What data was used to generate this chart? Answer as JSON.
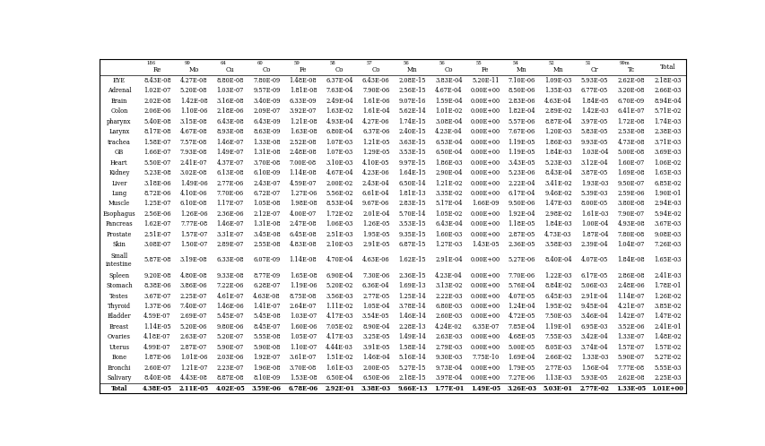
{
  "col_superscripts": [
    "",
    "186",
    "99",
    "64",
    "60",
    "59",
    "58",
    "57",
    "56",
    "56",
    "55",
    "54",
    "52",
    "51",
    "99m",
    ""
  ],
  "col_bases": [
    "",
    "Re",
    "Mo",
    "Cu",
    "Co",
    "Fe",
    "Co",
    "Co",
    "Mn",
    "Co",
    "Fe",
    "Mn",
    "Mn",
    "Cr",
    "Tc",
    "Total"
  ],
  "rows": [
    [
      "EYE",
      "8.43E-08",
      "4.27E-08",
      "8.80E-08",
      "7.80E-09",
      "1.48E-08",
      "6.37E-04",
      "6.43E-06",
      "2.08E-15",
      "3.83E-04",
      "5.20E-11",
      "7.10E-06",
      "1.09E-03",
      "5.93E-05",
      "2.62E-08",
      "2.18E-03"
    ],
    [
      "Adrenal",
      "1.02E-07",
      "5.20E-08",
      "1.03E-07",
      "9.57E-09",
      "1.81E-08",
      "7.63E-04",
      "7.90E-06",
      "2.56E-15",
      "4.67E-04",
      "0.00E+00",
      "8.50E-06",
      "1.35E-03",
      "6.77E-05",
      "3.20E-08",
      "2.66E-03"
    ],
    [
      "Brain",
      "2.02E-08",
      "1.42E-08",
      "3.16E-08",
      "3.40E-09",
      "6.33E-09",
      "2.49E-04",
      "1.61E-06",
      "9.07E-16",
      "1.59E-04",
      "0.00E+00",
      "2.83E-06",
      "4.63E-04",
      "1.84E-05",
      "6.70E-09",
      "8.94E-04"
    ],
    [
      "Colon",
      "2.06E-06",
      "1.10E-06",
      "2.18E-06",
      "2.09E-07",
      "3.92E-07",
      "1.63E-02",
      "1.61E-04",
      "5.62E-14",
      "1.01E-02",
      "0.00E+00",
      "1.82E-04",
      "2.89E-02",
      "1.42E-03",
      "6.41E-07",
      "5.71E-02"
    ],
    [
      "pharynx",
      "5.40E-08",
      "3.15E-08",
      "6.43E-08",
      "6.43E-09",
      "1.21E-08",
      "4.93E-04",
      "4.27E-06",
      "1.74E-15",
      "3.08E-04",
      "0.00E+00",
      "5.57E-06",
      "8.87E-04",
      "3.97E-05",
      "1.72E-08",
      "1.74E-03"
    ],
    [
      "Larynx",
      "8.17E-08",
      "4.67E-08",
      "8.93E-08",
      "8.63E-09",
      "1.63E-08",
      "6.80E-04",
      "6.37E-06",
      "2.40E-15",
      "4.23E-04",
      "0.00E+00",
      "7.67E-06",
      "1.20E-03",
      "5.83E-05",
      "2.53E-08",
      "2.38E-03"
    ],
    [
      "trachea",
      "1.58E-07",
      "7.57E-08",
      "1.46E-07",
      "1.33E-08",
      "2.52E-08",
      "1.07E-03",
      "1.21E-05",
      "3.63E-15",
      "6.53E-04",
      "0.00E+00",
      "1.19E-05",
      "1.86E-03",
      "9.93E-05",
      "4.73E-08",
      "3.71E-03"
    ],
    [
      "GB",
      "1.66E-07",
      "7.93E-08",
      "1.49E-07",
      "1.31E-08",
      "2.48E-08",
      "1.07E-03",
      "1.29E-05",
      "3.53E-15",
      "6.50E-04",
      "0.00E+00",
      "1.19E-05",
      "1.84E-03",
      "1.03E-04",
      "5.00E-08",
      "3.69E-03"
    ],
    [
      "Heart",
      "5.50E-07",
      "2.41E-07",
      "4.37E-07",
      "3.70E-08",
      "7.00E-08",
      "3.10E-03",
      "4.10E-05",
      "9.97E-15",
      "1.86E-03",
      "0.00E+00",
      "3.43E-05",
      "5.23E-03",
      "3.12E-04",
      "1.60E-07",
      "1.06E-02"
    ],
    [
      "Kidney",
      "5.23E-08",
      "3.02E-08",
      "6.13E-08",
      "6.10E-09",
      "1.14E-08",
      "4.67E-04",
      "4.23E-06",
      "1.64E-15",
      "2.90E-04",
      "0.00E+00",
      "5.23E-06",
      "8.43E-04",
      "3.87E-05",
      "1.69E-08",
      "1.65E-03"
    ],
    [
      "Liver",
      "3.18E-06",
      "1.49E-06",
      "2.77E-06",
      "2.43E-07",
      "4.59E-07",
      "2.00E-02",
      "2.43E-04",
      "6.50E-14",
      "1.21E-02",
      "0.00E+00",
      "2.22E-04",
      "3.41E-02",
      "1.93E-03",
      "9.50E-07",
      "6.85E-02"
    ],
    [
      "Lung",
      "8.72E-06",
      "4.10E-06",
      "7.70E-06",
      "6.72E-07",
      "1.27E-06",
      "5.56E-02",
      "6.61E-04",
      "1.81E-13",
      "3.35E-02",
      "0.00E+00",
      "6.17E-04",
      "9.46E-02",
      "5.39E-03",
      "2.59E-06",
      "1.90E-01"
    ],
    [
      "Muscle",
      "1.25E-07",
      "6.10E-08",
      "1.17E-07",
      "1.05E-08",
      "1.98E-08",
      "8.53E-04",
      "9.67E-06",
      "2.83E-15",
      "5.17E-04",
      "1.66E-09",
      "9.50E-06",
      "1.47E-03",
      "8.00E-05",
      "3.80E-08",
      "2.94E-03"
    ],
    [
      "Esophagus",
      "2.56E-06",
      "1.26E-06",
      "2.36E-06",
      "2.12E-07",
      "4.00E-07",
      "1.72E-02",
      "2.01E-04",
      "5.70E-14",
      "1.05E-02",
      "0.00E+00",
      "1.92E-04",
      "2.98E-02",
      "1.61E-03",
      "7.90E-07",
      "5.94E-02"
    ],
    [
      "Pancreas",
      "1.62E-07",
      "7.77E-08",
      "1.46E-07",
      "1.31E-08",
      "2.47E-08",
      "1.06E-03",
      "1.26E-05",
      "3.53E-15",
      "6.43E-04",
      "0.00E+00",
      "1.18E-05",
      "1.84E-03",
      "1.00E-04",
      "4.93E-08",
      "3.67E-03"
    ],
    [
      "Prostate",
      "2.51E-07",
      "1.57E-07",
      "3.31E-07",
      "3.45E-08",
      "6.45E-08",
      "2.51E-03",
      "1.95E-05",
      "9.35E-15",
      "1.60E-03",
      "0.00E+00",
      "2.87E-05",
      "4.73E-03",
      "1.87E-04",
      "7.80E-08",
      "9.08E-03"
    ],
    [
      "Skin",
      "3.08E-07",
      "1.50E-07",
      "2.89E-07",
      "2.55E-08",
      "4.83E-08",
      "2.10E-03",
      "2.91E-05",
      "6.87E-15",
      "1.27E-03",
      "1.43E-05",
      "2.36E-05",
      "3.58E-03",
      "2.39E-04",
      "1.04E-07",
      "7.26E-03"
    ],
    [
      "Small\nintestine",
      "5.87E-08",
      "3.19E-08",
      "6.33E-08",
      "6.07E-09",
      "1.14E-08",
      "4.70E-04",
      "4.63E-06",
      "1.62E-15",
      "2.91E-04",
      "0.00E+00",
      "5.27E-06",
      "8.40E-04",
      "4.07E-05",
      "1.84E-08",
      "1.65E-03"
    ],
    [
      "Spleen",
      "9.20E-08",
      "4.80E-08",
      "9.33E-08",
      "8.77E-09",
      "1.65E-08",
      "6.90E-04",
      "7.30E-06",
      "2.36E-15",
      "4.23E-04",
      "0.00E+00",
      "7.70E-06",
      "1.22E-03",
      "6.17E-05",
      "2.86E-08",
      "2.41E-03"
    ],
    [
      "Stomach",
      "8.38E-06",
      "3.86E-06",
      "7.22E-06",
      "6.28E-07",
      "1.19E-06",
      "5.20E-02",
      "6.36E-04",
      "1.69E-13",
      "3.13E-02",
      "0.00E+00",
      "5.76E-04",
      "8.84E-02",
      "5.06E-03",
      "2.48E-06",
      "1.78E-01"
    ],
    [
      "Testes",
      "3.67E-07",
      "2.25E-07",
      "4.61E-07",
      "4.63E-08",
      "8.75E-08",
      "3.56E-03",
      "2.77E-05",
      "1.25E-14",
      "2.22E-03",
      "0.00E+00",
      "4.07E-05",
      "6.45E-03",
      "2.91E-04",
      "1.14E-07",
      "1.26E-02"
    ],
    [
      "Thyroid",
      "1.37E-06",
      "7.40E-07",
      "1.46E-06",
      "1.41E-07",
      "2.64E-07",
      "1.11E-02",
      "1.05E-04",
      "3.78E-14",
      "6.80E-03",
      "0.00E+00",
      "1.24E-04",
      "1.95E-02",
      "9.45E-04",
      "4.21E-07",
      "3.85E-02"
    ],
    [
      "Bladder",
      "4.59E-07",
      "2.69E-07",
      "5.45E-07",
      "5.45E-08",
      "1.03E-07",
      "4.17E-03",
      "3.54E-05",
      "1.46E-14",
      "2.60E-03",
      "0.00E+00",
      "4.72E-05",
      "7.50E-03",
      "3.46E-04",
      "1.42E-07",
      "1.47E-02"
    ],
    [
      "Breast",
      "1.14E-05",
      "5.20E-06",
      "9.80E-06",
      "8.45E-07",
      "1.60E-06",
      "7.05E-02",
      "8.90E-04",
      "2.28E-13",
      "4.24E-02",
      "6.35E-07",
      "7.85E-04",
      "1.19E-01",
      "6.95E-03",
      "3.52E-06",
      "2.41E-01"
    ],
    [
      "Ovaries",
      "4.18E-07",
      "2.63E-07",
      "5.20E-07",
      "5.55E-08",
      "1.05E-07",
      "4.17E-03",
      "3.25E-05",
      "1.49E-14",
      "2.63E-03",
      "0.00E+00",
      "4.68E-05",
      "7.55E-03",
      "3.42E-04",
      "1.33E-07",
      "1.48E-02"
    ],
    [
      "Uterus",
      "4.99E-07",
      "2.87E-07",
      "5.90E-07",
      "5.90E-08",
      "1.10E-07",
      "4.44E-03",
      "3.91E-05",
      "1.58E-14",
      "2.79E-03",
      "0.00E+00",
      "5.00E-05",
      "8.05E-03",
      "3.74E-04",
      "1.57E-07",
      "1.57E-02"
    ],
    [
      "Bone",
      "1.87E-06",
      "1.01E-06",
      "2.03E-06",
      "1.92E-07",
      "3.61E-07",
      "1.51E-02",
      "1.46E-04",
      "5.16E-14",
      "9.30E-03",
      "7.75E-10",
      "1.69E-04",
      "2.66E-02",
      "1.33E-03",
      "5.90E-07",
      "5.27E-02"
    ],
    [
      "Bronchi",
      "2.60E-07",
      "1.21E-07",
      "2.23E-07",
      "1.96E-08",
      "3.70E-08",
      "1.61E-03",
      "2.00E-05",
      "5.27E-15",
      "9.73E-04",
      "0.00E+00",
      "1.79E-05",
      "2.77E-03",
      "1.56E-04",
      "7.77E-08",
      "5.55E-03"
    ],
    [
      "Salivary",
      "8.40E-08",
      "4.43E-08",
      "8.87E-08",
      "8.10E-09",
      "1.53E-08",
      "6.50E-04",
      "6.50E-06",
      "2.18E-15",
      "3.97E-04",
      "0.00E+00",
      "7.27E-06",
      "1.13E-03",
      "5.93E-05",
      "2.62E-08",
      "2.25E-03"
    ],
    [
      "Total",
      "4.38E-05",
      "2.11E-05",
      "4.02E-05",
      "3.59E-06",
      "6.78E-06",
      "2.92E-01",
      "3.38E-03",
      "9.66E-13",
      "1.77E-01",
      "1.49E-05",
      "3.26E-03",
      "5.03E-01",
      "2.77E-02",
      "1.33E-05",
      "1.01E+00"
    ]
  ],
  "font_size": 4.8,
  "header_font_size": 5.0,
  "sup_font_size": 3.8,
  "fig_width": 8.54,
  "fig_height": 4.98,
  "dpi": 100
}
